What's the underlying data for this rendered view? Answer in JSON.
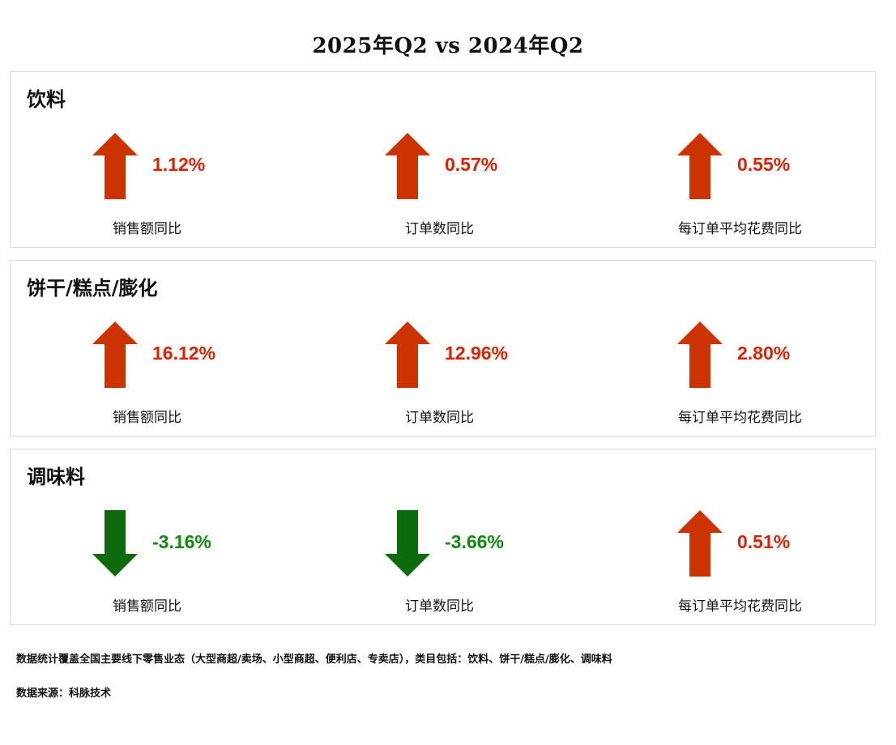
{
  "chart_data": {
    "type": "table",
    "title": "2025年Q2 vs 2024年Q2",
    "colors": {
      "up": "#e02000",
      "up_arrow": "#cc3300",
      "down": "#0f8a0f",
      "down_arrow": "#0c6b0c"
    },
    "categories": [
      {
        "name": "饮料",
        "metrics": [
          {
            "label": "销售额同比",
            "value": 1.12,
            "display": "1.12%",
            "direction": "up"
          },
          {
            "label": "订单数同比",
            "value": 0.57,
            "display": "0.57%",
            "direction": "up"
          },
          {
            "label": "每订单平均花费同比",
            "value": 0.55,
            "display": "0.55%",
            "direction": "up"
          }
        ]
      },
      {
        "name": "饼干/糕点/膨化",
        "metrics": [
          {
            "label": "销售额同比",
            "value": 16.12,
            "display": "16.12%",
            "direction": "up"
          },
          {
            "label": "订单数同比",
            "value": 12.96,
            "display": "12.96%",
            "direction": "up"
          },
          {
            "label": "每订单平均花费同比",
            "value": 2.8,
            "display": "2.80%",
            "direction": "up"
          }
        ]
      },
      {
        "name": "调味料",
        "metrics": [
          {
            "label": "销售额同比",
            "value": -3.16,
            "display": "-3.16%",
            "direction": "down"
          },
          {
            "label": "订单数同比",
            "value": -3.66,
            "display": "-3.66%",
            "direction": "down"
          },
          {
            "label": "每订单平均花费同比",
            "value": 0.51,
            "display": "0.51%",
            "direction": "up"
          }
        ]
      }
    ]
  },
  "footnotes": [
    "数据统计覆盖全国主要线下零售业态（大型商超/卖场、小型商超、便利店、专卖店），类目包括：饮料、饼干/糕点/膨化、调味料",
    "数据来源：科脉技术"
  ]
}
